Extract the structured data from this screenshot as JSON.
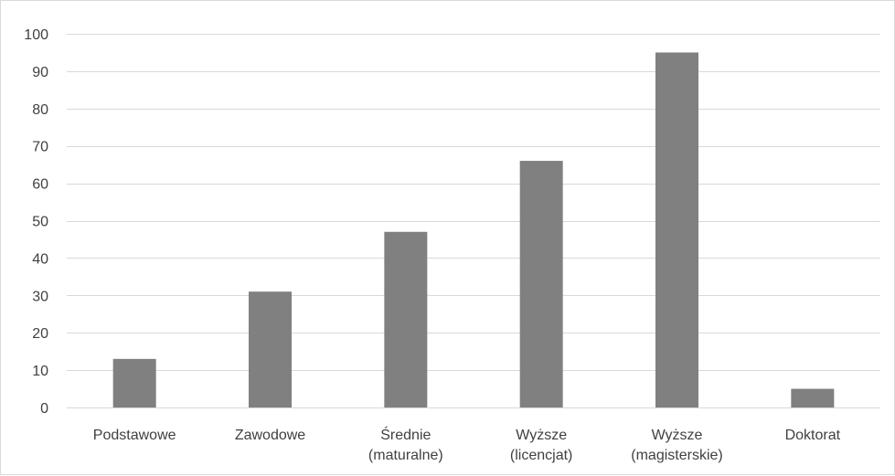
{
  "chart_data": {
    "type": "bar",
    "categories": [
      [
        "Podstawowe"
      ],
      [
        "Zawodowe"
      ],
      [
        "Średnie",
        "(maturalne)"
      ],
      [
        "Wyższe",
        "(licencjat)"
      ],
      [
        "Wyższe",
        "(magisterskie)"
      ],
      [
        "Doktorat"
      ]
    ],
    "values": [
      13,
      31,
      47,
      66,
      95,
      5
    ],
    "ylim": [
      0,
      100
    ],
    "yticks": [
      0,
      10,
      20,
      30,
      40,
      50,
      60,
      70,
      80,
      90,
      100
    ],
    "title": "",
    "xlabel": "",
    "ylabel": "",
    "grid": true,
    "bar_color": "#808080",
    "grid_color": "#d9d9d9",
    "text_color": "#404040"
  }
}
